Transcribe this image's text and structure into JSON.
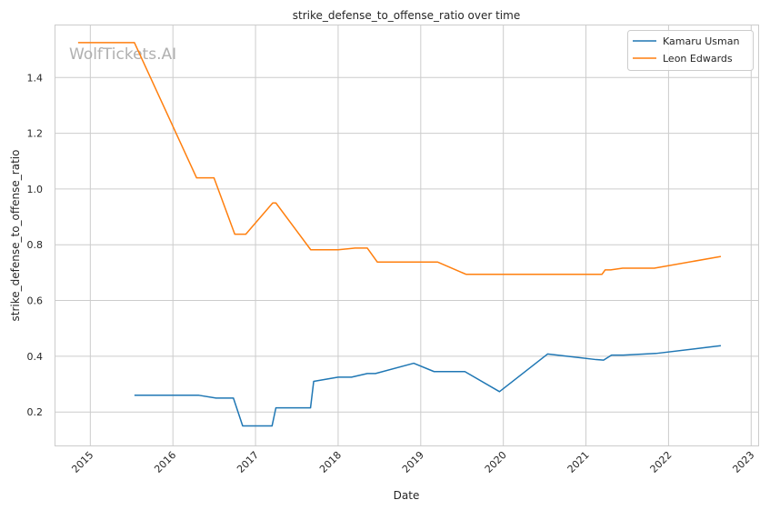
{
  "chart_data": {
    "type": "line",
    "title": "strike_defense_to_offense_ratio over time",
    "xlabel": "Date",
    "ylabel": "strike_defense_to_offense_ratio",
    "xlim": [
      "2014-07-27",
      "2023-02-01"
    ],
    "ylim": [
      0.08,
      1.59
    ],
    "x_ticks": [
      "2015",
      "2016",
      "2017",
      "2018",
      "2019",
      "2020",
      "2021",
      "2022",
      "2023"
    ],
    "y_ticks": [
      "0.2",
      "0.4",
      "0.6",
      "0.8",
      "1.0",
      "1.2",
      "1.4"
    ],
    "grid": true,
    "legend": "top-right",
    "watermark": "WolfTickets.AI",
    "series": [
      {
        "name": "Kamaru Usman",
        "color": "#1f77b4",
        "points": [
          [
            "2015-07-15",
            0.26
          ],
          [
            "2016-04-25",
            0.26
          ],
          [
            "2016-07-10",
            0.25
          ],
          [
            "2016-09-25",
            0.25
          ],
          [
            "2016-11-05",
            0.15
          ],
          [
            "2017-03-15",
            0.15
          ],
          [
            "2017-04-01",
            0.215
          ],
          [
            "2017-09-01",
            0.215
          ],
          [
            "2017-09-15",
            0.31
          ],
          [
            "2018-01-01",
            0.325
          ],
          [
            "2018-03-01",
            0.325
          ],
          [
            "2018-05-10",
            0.338
          ],
          [
            "2018-06-15",
            0.338
          ],
          [
            "2018-12-01",
            0.375
          ],
          [
            "2019-03-01",
            0.345
          ],
          [
            "2019-07-15",
            0.345
          ],
          [
            "2019-12-15",
            0.273
          ],
          [
            "2020-07-15",
            0.408
          ],
          [
            "2021-02-15",
            0.388
          ],
          [
            "2021-03-20",
            0.386
          ],
          [
            "2021-04-24",
            0.404
          ],
          [
            "2021-06-15",
            0.404
          ],
          [
            "2021-11-06",
            0.41
          ],
          [
            "2022-08-20",
            0.438
          ]
        ]
      },
      {
        "name": "Leon Edwards",
        "color": "#ff7f0e",
        "points": [
          [
            "2014-11-08",
            1.525
          ],
          [
            "2015-07-15",
            1.525
          ],
          [
            "2016-04-15",
            1.04
          ],
          [
            "2016-07-01",
            1.04
          ],
          [
            "2016-10-01",
            0.838
          ],
          [
            "2016-11-19",
            0.838
          ],
          [
            "2017-03-18",
            0.95
          ],
          [
            "2017-04-01",
            0.95
          ],
          [
            "2017-09-02",
            0.782
          ],
          [
            "2018-01-01",
            0.782
          ],
          [
            "2018-03-17",
            0.788
          ],
          [
            "2018-05-10",
            0.788
          ],
          [
            "2018-06-23",
            0.738
          ],
          [
            "2019-03-16",
            0.738
          ],
          [
            "2019-07-20",
            0.694
          ],
          [
            "2021-03-13",
            0.694
          ],
          [
            "2021-03-27",
            0.71
          ],
          [
            "2021-04-20",
            0.71
          ],
          [
            "2021-06-12",
            0.716
          ],
          [
            "2021-10-30",
            0.716
          ],
          [
            "2022-08-20",
            0.758
          ]
        ]
      }
    ]
  }
}
